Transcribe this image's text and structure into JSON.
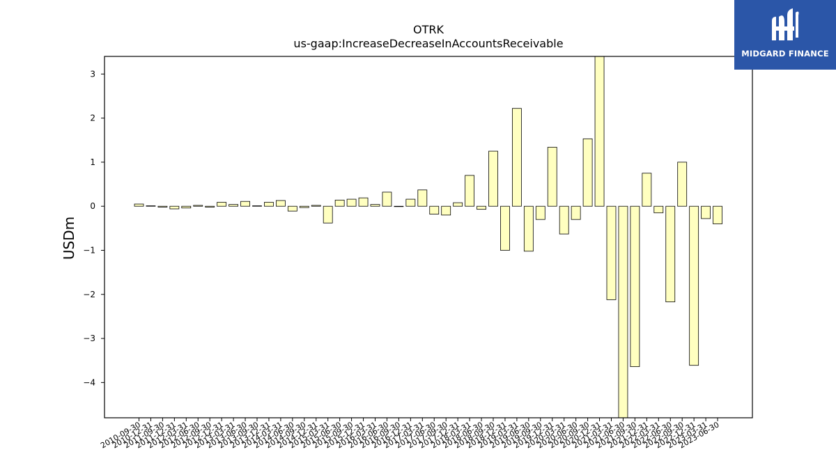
{
  "brand": {
    "name": "MIDGARD FINANCE",
    "logo_icon": "midgard-m-logo-icon",
    "color": "#2b56a8"
  },
  "chart_data": {
    "type": "bar",
    "title": "OTRK",
    "subtitle": "us-gaap:IncreaseDecreaseInAccountsReceivable",
    "xlabel": "",
    "ylabel": "USDm",
    "ylim": [
      -4.8,
      3.4
    ],
    "yticks": [
      -4,
      -3,
      -2,
      -1,
      0,
      1,
      2,
      3
    ],
    "grid": false,
    "bar_color": "#ffffc0",
    "edge_color": "#000000",
    "categories": [
      "2010-09-30",
      "2010-12-31",
      "2011-09-30",
      "2011-12-31",
      "2012-03-31",
      "2012-06-30",
      "2012-09-30",
      "2012-12-31",
      "2013-03-31",
      "2013-06-30",
      "2013-09-30",
      "2013-12-31",
      "2014-03-31",
      "2014-06-30",
      "2014-09-30",
      "2014-12-31",
      "2015-03-31",
      "2015-06-30",
      "2015-09-30",
      "2015-12-31",
      "2016-03-31",
      "2016-06-30",
      "2016-09-30",
      "2016-12-31",
      "2017-03-31",
      "2017-06-30",
      "2017-09-30",
      "2017-12-31",
      "2018-03-31",
      "2018-06-30",
      "2018-09-30",
      "2018-12-31",
      "2019-03-31",
      "2019-06-30",
      "2019-09-30",
      "2019-12-31",
      "2020-03-31",
      "2020-06-30",
      "2020-09-30",
      "2020-12-31",
      "2021-03-31",
      "2021-06-30",
      "2021-09-30",
      "2021-12-31",
      "2022-03-31",
      "2022-06-30",
      "2022-09-30",
      "2022-12-31",
      "2023-03-31",
      "2023-06-30"
    ],
    "values": [
      0.05,
      0.01,
      -0.02,
      -0.06,
      -0.04,
      0.02,
      -0.02,
      0.09,
      0.04,
      0.11,
      0.01,
      0.09,
      0.13,
      -0.11,
      -0.03,
      0.02,
      -0.38,
      0.14,
      0.16,
      0.19,
      0.04,
      0.32,
      0.0,
      0.16,
      0.37,
      -0.18,
      -0.2,
      0.08,
      0.7,
      -0.07,
      1.25,
      -1.0,
      2.22,
      -1.02,
      -0.3,
      1.34,
      -0.63,
      -0.3,
      1.53,
      3.4,
      -2.12,
      -4.8,
      -3.64,
      0.75,
      -0.15,
      -2.17,
      1.0,
      -3.61,
      -0.28,
      -0.4
    ]
  }
}
